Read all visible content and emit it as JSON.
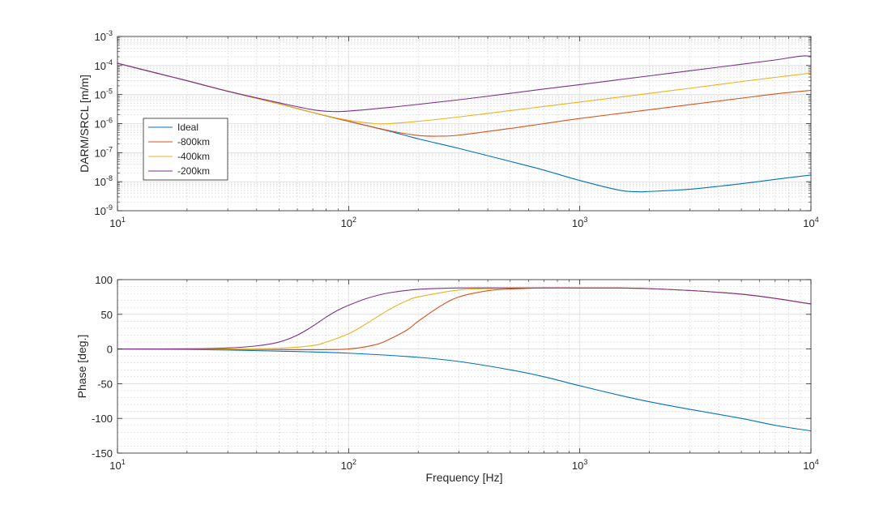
{
  "chart_data": [
    {
      "type": "line",
      "name": "magnitude-panel",
      "ylabel": "DARM/SRCL  [m/m]",
      "xlabel": "",
      "xscale": "log",
      "yscale": "log",
      "xlim": [
        10,
        10000
      ],
      "ylim": [
        1e-09,
        0.001
      ],
      "grid": true,
      "minor_grid": true,
      "legend_position": "middle-left",
      "x_ticks": [
        {
          "base": "10",
          "exp": "1",
          "value": 10
        },
        {
          "base": "10",
          "exp": "2",
          "value": 100
        },
        {
          "base": "10",
          "exp": "3",
          "value": 1000
        },
        {
          "base": "10",
          "exp": "4",
          "value": 10000
        }
      ],
      "y_ticks": [
        {
          "base": "10",
          "exp": "-9",
          "value": 1e-09
        },
        {
          "base": "10",
          "exp": "-8",
          "value": 1e-08
        },
        {
          "base": "10",
          "exp": "-7",
          "value": 1e-07
        },
        {
          "base": "10",
          "exp": "-6",
          "value": 1e-06
        },
        {
          "base": "10",
          "exp": "-5",
          "value": 1e-05
        },
        {
          "base": "10",
          "exp": "-4",
          "value": 0.0001
        },
        {
          "base": "10",
          "exp": "-3",
          "value": 0.001
        }
      ],
      "series": [
        {
          "name": "Ideal",
          "color": "#0072bd",
          "x": [
            10,
            15,
            20,
            30,
            50,
            70,
            100,
            150,
            200,
            300,
            500,
            700,
            1000,
            1500,
            1800,
            2000,
            3000,
            5000,
            7000,
            10000
          ],
          "y": [
            0.00012,
            5.3e-05,
            3e-05,
            1.3e-05,
            4.8e-06,
            2.4e-06,
            1.2e-06,
            5.5e-07,
            3e-07,
            1.4e-07,
            5e-08,
            2.5e-08,
            1.1e-08,
            5e-09,
            4.5e-09,
            4.6e-09,
            5.5e-09,
            8.5e-09,
            1.2e-08,
            1.7e-08
          ]
        },
        {
          "name": "-800km",
          "color": "#d95319",
          "x": [
            10,
            15,
            20,
            30,
            50,
            70,
            100,
            150,
            200,
            250,
            300,
            500,
            700,
            1000,
            2000,
            3000,
            5000,
            7000,
            10000
          ],
          "y": [
            0.00012,
            5.3e-05,
            3e-05,
            1.3e-05,
            4.8e-06,
            2.4e-06,
            1.2e-06,
            5.7e-07,
            3.9e-07,
            3.7e-07,
            4e-07,
            6.8e-07,
            1e-06,
            1.5e-06,
            3e-06,
            4.5e-06,
            7.5e-06,
            1.05e-05,
            1.4e-05
          ]
        },
        {
          "name": "-400km",
          "color": "#edb120",
          "x": [
            10,
            15,
            20,
            30,
            50,
            70,
            100,
            130,
            150,
            200,
            300,
            500,
            700,
            1000,
            2000,
            3000,
            5000,
            7000,
            10000
          ],
          "y": [
            0.00012,
            5.3e-05,
            3e-05,
            1.3e-05,
            4.8e-06,
            2.4e-06,
            1.3e-06,
            1e-06,
            1e-06,
            1.2e-06,
            1.7e-06,
            2.8e-06,
            3.9e-06,
            5.5e-06,
            1.1e-05,
            1.65e-05,
            2.8e-05,
            3.9e-05,
            5.5e-05
          ]
        },
        {
          "name": "-200km",
          "color": "#7e2f8e",
          "x": [
            10,
            15,
            20,
            30,
            50,
            70,
            85,
            100,
            150,
            200,
            300,
            500,
            700,
            1000,
            2000,
            3000,
            5000,
            7000,
            9000,
            10000
          ],
          "y": [
            0.00012,
            5.3e-05,
            3e-05,
            1.3e-05,
            5.2e-06,
            3e-06,
            2.6e-06,
            2.7e-06,
            3.6e-06,
            4.6e-06,
            6.6e-06,
            1.1e-05,
            1.55e-05,
            2.2e-05,
            4.4e-05,
            6.6e-05,
            0.00011,
            0.000155,
            0.00021,
            0.00021
          ]
        }
      ]
    },
    {
      "type": "line",
      "name": "phase-panel",
      "ylabel": "Phase [deg.]",
      "xlabel": "Frequency [Hz]",
      "xscale": "log",
      "yscale": "linear",
      "xlim": [
        10,
        10000
      ],
      "ylim": [
        -150,
        100
      ],
      "grid": true,
      "minor_grid": true,
      "x_ticks": [
        {
          "base": "10",
          "exp": "1",
          "value": 10
        },
        {
          "base": "10",
          "exp": "2",
          "value": 100
        },
        {
          "base": "10",
          "exp": "3",
          "value": 1000
        },
        {
          "base": "10",
          "exp": "4",
          "value": 10000
        }
      ],
      "y_ticks": [
        {
          "label": "100",
          "value": 100
        },
        {
          "label": "50",
          "value": 50
        },
        {
          "label": "0",
          "value": 0
        },
        {
          "label": "-50",
          "value": -50
        },
        {
          "label": "-100",
          "value": -100
        },
        {
          "label": "-150",
          "value": -150
        }
      ],
      "series": [
        {
          "name": "Ideal",
          "color": "#0072bd",
          "x": [
            10,
            20,
            30,
            50,
            100,
            200,
            300,
            500,
            700,
            1000,
            1500,
            2000,
            3000,
            5000,
            7000,
            10000
          ],
          "y": [
            0,
            -0.7,
            -1.5,
            -3,
            -6,
            -12,
            -18,
            -30,
            -40,
            -53,
            -67,
            -76,
            -87,
            -100,
            -110,
            -118
          ]
        },
        {
          "name": "-800km",
          "color": "#d95319",
          "x": [
            10,
            30,
            50,
            70,
            100,
            130,
            150,
            180,
            200,
            250,
            300,
            400,
            500,
            700,
            1000,
            2000,
            5000,
            10000
          ],
          "y": [
            0,
            -0.5,
            -0.8,
            -1,
            0,
            6,
            14,
            28,
            40,
            62,
            75,
            84,
            86.5,
            88,
            88,
            87,
            79,
            65
          ]
        },
        {
          "name": "-400km",
          "color": "#edb120",
          "x": [
            10,
            30,
            50,
            70,
            80,
            100,
            120,
            150,
            180,
            200,
            300,
            400,
            500,
            700,
            1000,
            2000,
            5000,
            10000
          ],
          "y": [
            0,
            0,
            1,
            5,
            10,
            22,
            37,
            57,
            70,
            75,
            85,
            87,
            88,
            88,
            88,
            87,
            79,
            65
          ]
        },
        {
          "name": "-200km",
          "color": "#7e2f8e",
          "x": [
            10,
            20,
            30,
            40,
            50,
            60,
            70,
            80,
            90,
            100,
            120,
            150,
            200,
            300,
            500,
            1000,
            2000,
            5000,
            10000
          ],
          "y": [
            0,
            0.3,
            1.5,
            4.5,
            10,
            20,
            33,
            46,
            56,
            63,
            73,
            81,
            86,
            88,
            88,
            88,
            87,
            79,
            65
          ]
        }
      ]
    }
  ]
}
